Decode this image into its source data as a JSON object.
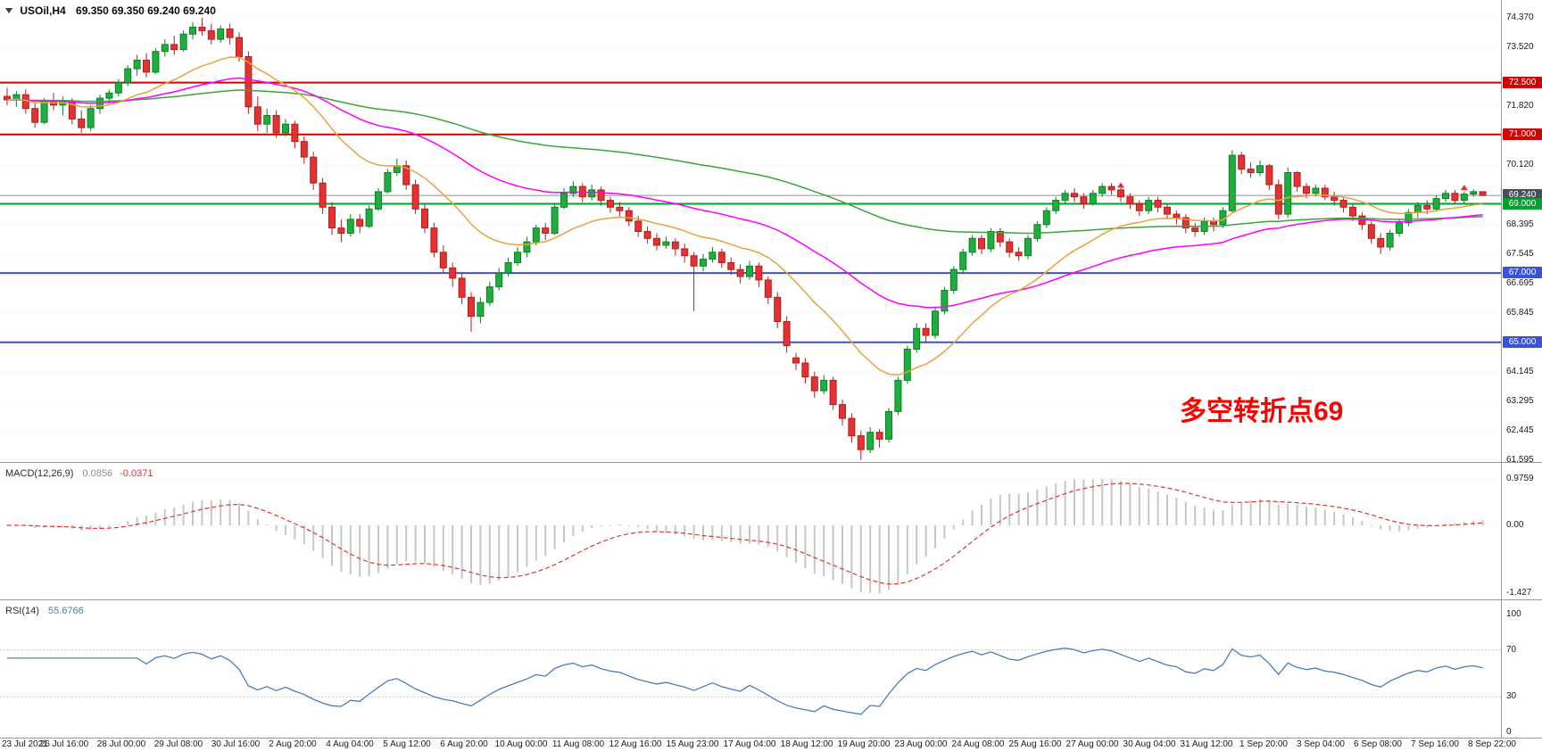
{
  "window": {
    "symbol_timeframe": "USOil,H4",
    "ohlc_text": "69.350 69.350 69.240 69.240"
  },
  "colors": {
    "bull": "#1fae3e",
    "bull_border": "#0d7f26",
    "bear": "#e23232",
    "bear_border": "#b21f1f",
    "ma_fast": "#e8a33d",
    "ma_mid": "#ff00ff",
    "ma_slow": "#3aa63a",
    "level_red": "#d40000",
    "level_green": "#00a22e",
    "level_blue": "#3a52d8",
    "current_badge": "#4a4e59",
    "current_line": "#909090",
    "macd_hist": "#c6c6c6",
    "macd_signal": "#e03333",
    "rsi_line": "#4a7ebb",
    "annotation": "#ff0000",
    "grid": "#e8e8e8"
  },
  "chart_data": {
    "type": "candlestick",
    "symbol": "USOil",
    "timeframe": "H4",
    "title": "USOil,H4 69.350 69.350 69.240 69.240",
    "annotation": {
      "text": "多空转折点69"
    },
    "time_labels": [
      "23 Jul 2021",
      "26 Jul 16:00",
      "28 Jul 00:00",
      "29 Jul 08:00",
      "30 Jul 16:00",
      "2 Aug 20:00",
      "4 Aug 04:00",
      "5 Aug 12:00",
      "6 Aug 20:00",
      "10 Aug 00:00",
      "11 Aug 08:00",
      "12 Aug 16:00",
      "15 Aug 23:00",
      "17 Aug 04:00",
      "18 Aug 12:00",
      "19 Aug 20:00",
      "23 Aug 00:00",
      "24 Aug 08:00",
      "25 Aug 16:00",
      "27 Aug 00:00",
      "30 Aug 04:00",
      "31 Aug 12:00",
      "1 Sep 20:00",
      "3 Sep 04:00",
      "6 Sep 08:00",
      "7 Sep 16:00",
      "8 Sep 22:00"
    ],
    "price_axis": {
      "labels": [
        {
          "text": "74.370",
          "value": 74.37,
          "style": "plain"
        },
        {
          "text": "73.520",
          "value": 73.52,
          "style": "plain"
        },
        {
          "text": "72.500",
          "value": 72.5,
          "style": "red"
        },
        {
          "text": "71.820",
          "value": 71.82,
          "style": "plain"
        },
        {
          "text": "71.000",
          "value": 71.0,
          "style": "red"
        },
        {
          "text": "70.120",
          "value": 70.12,
          "style": "plain"
        },
        {
          "text": "69.240",
          "value": 69.24,
          "style": "dark"
        },
        {
          "text": "69.000",
          "value": 69.0,
          "style": "green"
        },
        {
          "text": "68.395",
          "value": 68.395,
          "style": "plain"
        },
        {
          "text": "67.545",
          "value": 67.545,
          "style": "plain"
        },
        {
          "text": "67.000",
          "value": 67.0,
          "style": "blue"
        },
        {
          "text": "66.695",
          "value": 66.695,
          "style": "plain"
        },
        {
          "text": "65.845",
          "value": 65.845,
          "style": "plain"
        },
        {
          "text": "65.000",
          "value": 65.0,
          "style": "blue"
        },
        {
          "text": "64.145",
          "value": 64.145,
          "style": "plain"
        },
        {
          "text": "63.295",
          "value": 63.295,
          "style": "plain"
        },
        {
          "text": "62.445",
          "value": 62.445,
          "style": "plain"
        },
        {
          "text": "61.595",
          "value": 61.595,
          "style": "plain"
        }
      ]
    },
    "current_price": {
      "value": 69.24,
      "label": "69.240"
    },
    "moving_averages": [
      {
        "name": "slow",
        "period": 120,
        "color_key": "ma_slow"
      },
      {
        "name": "mid",
        "period": 48,
        "color_key": "ma_mid"
      },
      {
        "name": "fast",
        "period": 18,
        "color_key": "ma_fast"
      }
    ],
    "markers": [
      {
        "index": 120,
        "price": 69.62
      },
      {
        "index": 157,
        "price": 69.55
      }
    ],
    "candles": [
      [
        72.1,
        72.35,
        71.85,
        72.0
      ],
      [
        72.0,
        72.25,
        71.8,
        72.15
      ],
      [
        72.15,
        72.3,
        71.6,
        71.75
      ],
      [
        71.75,
        71.9,
        71.2,
        71.35
      ],
      [
        71.35,
        72.05,
        71.3,
        71.95
      ],
      [
        71.95,
        72.2,
        71.7,
        71.85
      ],
      [
        71.85,
        72.1,
        71.55,
        71.95
      ],
      [
        71.95,
        72.05,
        71.3,
        71.45
      ],
      [
        71.45,
        71.7,
        71.05,
        71.2
      ],
      [
        71.2,
        71.85,
        71.1,
        71.75
      ],
      [
        71.75,
        72.15,
        71.6,
        72.05
      ],
      [
        72.05,
        72.3,
        71.9,
        72.2
      ],
      [
        72.2,
        72.6,
        72.1,
        72.5
      ],
      [
        72.5,
        73.0,
        72.4,
        72.9
      ],
      [
        72.9,
        73.3,
        72.7,
        73.15
      ],
      [
        73.15,
        73.35,
        72.65,
        72.8
      ],
      [
        72.8,
        73.5,
        72.75,
        73.4
      ],
      [
        73.4,
        73.75,
        73.25,
        73.6
      ],
      [
        73.6,
        73.85,
        73.3,
        73.45
      ],
      [
        73.45,
        74.0,
        73.4,
        73.9
      ],
      [
        73.9,
        74.25,
        73.75,
        74.1
      ],
      [
        74.1,
        74.37,
        73.85,
        74.0
      ],
      [
        74.0,
        74.2,
        73.6,
        73.75
      ],
      [
        73.75,
        74.15,
        73.65,
        74.05
      ],
      [
        74.05,
        74.2,
        73.6,
        73.8
      ],
      [
        73.8,
        73.95,
        73.1,
        73.25
      ],
      [
        73.25,
        73.4,
        71.6,
        71.8
      ],
      [
        71.8,
        72.1,
        71.1,
        71.3
      ],
      [
        71.3,
        71.75,
        71.05,
        71.55
      ],
      [
        71.55,
        71.7,
        70.9,
        71.05
      ],
      [
        71.05,
        71.45,
        70.95,
        71.3
      ],
      [
        71.3,
        71.4,
        70.6,
        70.8
      ],
      [
        70.8,
        70.95,
        70.15,
        70.35
      ],
      [
        70.35,
        70.5,
        69.4,
        69.6
      ],
      [
        69.6,
        69.75,
        68.7,
        68.9
      ],
      [
        68.9,
        69.05,
        68.1,
        68.3
      ],
      [
        68.3,
        68.55,
        67.9,
        68.15
      ],
      [
        68.15,
        68.7,
        68.05,
        68.55
      ],
      [
        68.55,
        68.7,
        68.15,
        68.35
      ],
      [
        68.35,
        68.95,
        68.3,
        68.85
      ],
      [
        68.85,
        69.45,
        68.8,
        69.35
      ],
      [
        69.35,
        70.0,
        69.3,
        69.9
      ],
      [
        69.9,
        70.3,
        69.8,
        70.1
      ],
      [
        70.1,
        70.25,
        69.4,
        69.55
      ],
      [
        69.55,
        69.7,
        68.7,
        68.85
      ],
      [
        68.85,
        69.0,
        68.15,
        68.3
      ],
      [
        68.3,
        68.45,
        67.45,
        67.6
      ],
      [
        67.6,
        67.8,
        67.0,
        67.15
      ],
      [
        67.15,
        67.3,
        66.6,
        66.85
      ],
      [
        66.85,
        67.0,
        66.1,
        66.3
      ],
      [
        66.3,
        66.45,
        65.3,
        65.75
      ],
      [
        65.75,
        66.3,
        65.55,
        66.15
      ],
      [
        66.15,
        66.75,
        66.05,
        66.6
      ],
      [
        66.6,
        67.15,
        66.5,
        67.0
      ],
      [
        67.0,
        67.45,
        66.9,
        67.3
      ],
      [
        67.3,
        67.75,
        67.2,
        67.6
      ],
      [
        67.6,
        68.05,
        67.45,
        67.9
      ],
      [
        67.9,
        68.4,
        67.8,
        68.3
      ],
      [
        68.3,
        68.45,
        67.95,
        68.15
      ],
      [
        68.15,
        69.0,
        68.1,
        68.9
      ],
      [
        68.9,
        69.45,
        68.85,
        69.3
      ],
      [
        69.3,
        69.65,
        69.2,
        69.5
      ],
      [
        69.5,
        69.6,
        69.05,
        69.2
      ],
      [
        69.2,
        69.55,
        69.1,
        69.4
      ],
      [
        69.4,
        69.5,
        68.95,
        69.1
      ],
      [
        69.1,
        69.2,
        68.75,
        68.9
      ],
      [
        68.9,
        69.05,
        68.6,
        68.8
      ],
      [
        68.8,
        68.9,
        68.35,
        68.5
      ],
      [
        68.5,
        68.65,
        68.05,
        68.2
      ],
      [
        68.2,
        68.35,
        67.85,
        68.0
      ],
      [
        68.0,
        68.15,
        67.65,
        67.8
      ],
      [
        67.8,
        68.05,
        67.7,
        67.9
      ],
      [
        67.9,
        68.0,
        67.5,
        67.7
      ],
      [
        67.7,
        67.85,
        67.3,
        67.5
      ],
      [
        67.5,
        67.6,
        65.9,
        67.2
      ],
      [
        67.2,
        67.55,
        67.05,
        67.4
      ],
      [
        67.4,
        67.75,
        67.3,
        67.6
      ],
      [
        67.6,
        67.7,
        67.15,
        67.3
      ],
      [
        67.3,
        67.45,
        66.95,
        67.1
      ],
      [
        67.1,
        67.25,
        66.7,
        66.9
      ],
      [
        66.9,
        67.35,
        66.8,
        67.2
      ],
      [
        67.2,
        67.3,
        66.6,
        66.8
      ],
      [
        66.8,
        66.9,
        66.1,
        66.3
      ],
      [
        66.3,
        66.45,
        65.4,
        65.6
      ],
      [
        65.6,
        65.75,
        64.7,
        64.9
      ],
      [
        64.55,
        64.7,
        64.2,
        64.4
      ],
      [
        64.4,
        64.55,
        63.8,
        64.0
      ],
      [
        64.0,
        64.15,
        63.4,
        63.6
      ],
      [
        63.6,
        64.05,
        63.5,
        63.9
      ],
      [
        63.9,
        64.0,
        63.05,
        63.2
      ],
      [
        63.2,
        63.35,
        62.6,
        62.8
      ],
      [
        62.8,
        62.95,
        62.1,
        62.3
      ],
      [
        62.3,
        62.45,
        61.6,
        61.9
      ],
      [
        61.9,
        62.55,
        61.8,
        62.4
      ],
      [
        62.4,
        62.5,
        61.95,
        62.2
      ],
      [
        62.2,
        63.1,
        62.1,
        63.0
      ],
      [
        63.0,
        64.0,
        62.9,
        63.9
      ],
      [
        63.9,
        64.9,
        63.8,
        64.8
      ],
      [
        64.8,
        65.55,
        64.7,
        65.4
      ],
      [
        65.4,
        65.55,
        65.0,
        65.2
      ],
      [
        65.2,
        66.0,
        65.1,
        65.9
      ],
      [
        65.9,
        66.6,
        65.8,
        66.5
      ],
      [
        66.5,
        67.2,
        66.4,
        67.1
      ],
      [
        67.1,
        67.7,
        67.0,
        67.6
      ],
      [
        67.6,
        68.1,
        67.5,
        68.0
      ],
      [
        68.0,
        68.1,
        67.55,
        67.7
      ],
      [
        67.7,
        68.3,
        67.6,
        68.2
      ],
      [
        68.2,
        68.3,
        67.75,
        67.9
      ],
      [
        67.9,
        68.0,
        67.45,
        67.6
      ],
      [
        67.6,
        67.75,
        67.35,
        67.5
      ],
      [
        67.5,
        68.1,
        67.4,
        68.0
      ],
      [
        68.0,
        68.5,
        67.9,
        68.4
      ],
      [
        68.4,
        68.9,
        68.3,
        68.8
      ],
      [
        68.8,
        69.2,
        68.7,
        69.1
      ],
      [
        69.1,
        69.4,
        69.0,
        69.3
      ],
      [
        69.3,
        69.45,
        69.05,
        69.2
      ],
      [
        69.2,
        69.3,
        68.85,
        69.0
      ],
      [
        69.0,
        69.4,
        68.95,
        69.3
      ],
      [
        69.3,
        69.6,
        69.2,
        69.5
      ],
      [
        69.5,
        69.6,
        69.25,
        69.4
      ],
      [
        69.4,
        69.5,
        69.05,
        69.2
      ],
      [
        69.2,
        69.3,
        68.85,
        69.0
      ],
      [
        69.0,
        69.1,
        68.65,
        68.8
      ],
      [
        68.8,
        69.2,
        68.7,
        69.1
      ],
      [
        69.1,
        69.2,
        68.75,
        68.9
      ],
      [
        68.9,
        69.0,
        68.55,
        68.7
      ],
      [
        68.7,
        68.8,
        68.4,
        68.6
      ],
      [
        68.6,
        68.7,
        68.15,
        68.3
      ],
      [
        68.3,
        68.45,
        68.05,
        68.2
      ],
      [
        68.2,
        68.6,
        68.1,
        68.5
      ],
      [
        68.5,
        68.6,
        68.2,
        68.4
      ],
      [
        68.4,
        68.9,
        68.3,
        68.8
      ],
      [
        68.8,
        70.55,
        68.75,
        70.4
      ],
      [
        70.4,
        70.5,
        69.85,
        70.0
      ],
      [
        70.0,
        70.2,
        69.75,
        69.9
      ],
      [
        69.9,
        70.25,
        69.8,
        70.1
      ],
      [
        70.1,
        70.15,
        69.4,
        69.55
      ],
      [
        69.55,
        69.7,
        68.55,
        68.7
      ],
      [
        68.7,
        70.05,
        68.6,
        69.9
      ],
      [
        69.9,
        69.95,
        69.35,
        69.5
      ],
      [
        69.5,
        69.6,
        69.15,
        69.3
      ],
      [
        69.3,
        69.55,
        69.2,
        69.45
      ],
      [
        69.45,
        69.55,
        69.1,
        69.2
      ],
      [
        69.2,
        69.35,
        68.95,
        69.1
      ],
      [
        69.1,
        69.2,
        68.75,
        68.9
      ],
      [
        68.9,
        69.0,
        68.5,
        68.65
      ],
      [
        68.65,
        68.75,
        68.25,
        68.4
      ],
      [
        68.4,
        68.5,
        67.85,
        68.0
      ],
      [
        68.0,
        68.15,
        67.55,
        67.75
      ],
      [
        67.75,
        68.25,
        67.65,
        68.15
      ],
      [
        68.15,
        68.55,
        68.05,
        68.45
      ],
      [
        68.45,
        68.85,
        68.35,
        68.75
      ],
      [
        68.75,
        69.05,
        68.6,
        68.95
      ],
      [
        68.95,
        69.1,
        68.7,
        68.85
      ],
      [
        68.85,
        69.25,
        68.8,
        69.15
      ],
      [
        69.15,
        69.4,
        69.05,
        69.3
      ],
      [
        69.3,
        69.4,
        69.0,
        69.1
      ],
      [
        69.1,
        69.35,
        69.0,
        69.28
      ],
      [
        69.28,
        69.42,
        69.2,
        69.35
      ],
      [
        69.35,
        69.35,
        69.24,
        69.24
      ]
    ],
    "indicators": [
      {
        "name": "MACD",
        "params": [
          12,
          26,
          9
        ],
        "label_title": "MACD(12,26,9)",
        "label_values": [
          "0.0856",
          "-0.0371"
        ],
        "axis_labels": [
          {
            "text": "0.9759",
            "value": 0.9759
          },
          {
            "text": "0.00",
            "value": 0
          },
          {
            "text": "-1.427",
            "value": -1.427
          }
        ],
        "range": [
          -1.427,
          0.9759
        ]
      },
      {
        "name": "RSI",
        "period": 14,
        "label_title": "RSI(14)",
        "label_value": "55.6766",
        "axis_labels": [
          {
            "text": "100",
            "value": 100
          },
          {
            "text": "70",
            "value": 70
          },
          {
            "text": "30",
            "value": 30
          },
          {
            "text": "0",
            "value": 0
          }
        ],
        "levels": [
          70,
          30
        ],
        "range": [
          0,
          100
        ]
      }
    ]
  }
}
